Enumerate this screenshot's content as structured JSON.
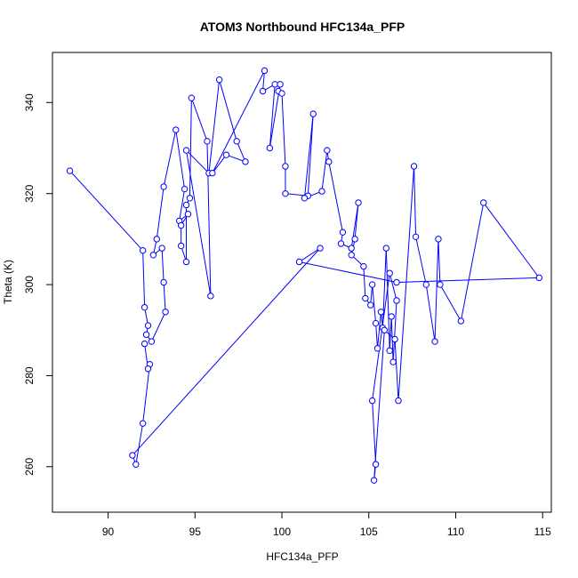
{
  "chart_data": {
    "type": "line",
    "title": "ATOM3 Northbound HFC134a_PFP",
    "xlabel": "HFC134a_PFP",
    "ylabel": "Theta (K)",
    "xlim": [
      86.8,
      115.5
    ],
    "ylim": [
      250.0,
      351.0
    ],
    "xticks": [
      90,
      95,
      100,
      105,
      110,
      115
    ],
    "yticks": [
      260,
      280,
      300,
      320,
      340
    ],
    "grid": false,
    "legend": "none",
    "markers": "open-circle",
    "color": "#0000ff",
    "series": [
      {
        "x": [
          87.8,
          92.0,
          92.1,
          92.3,
          92.2,
          92.5,
          93.3,
          93.2,
          93.1,
          92.6,
          92.8,
          93.2,
          93.9,
          94.4,
          94.1,
          94.6,
          94.2,
          94.2,
          94.5,
          94.5,
          94.7,
          94.8,
          95.7,
          95.9,
          94.5,
          95.8,
          96.4,
          97.4,
          97.9,
          96.8,
          96.0,
          99.0,
          98.9,
          99.6,
          99.3,
          99.9,
          99.8,
          100.0,
          100.2,
          100.2,
          101.5,
          101.8,
          101.3,
          102.3,
          102.6,
          102.7,
          103.5,
          103.4,
          104.0,
          104.4,
          104.2,
          104.0,
          104.7,
          104.8,
          105.1,
          105.2,
          105.4,
          105.5,
          105.7,
          105.8,
          106.0,
          106.2,
          106.3,
          106.4,
          106.6,
          106.2,
          105.2,
          105.4,
          105.3,
          105.9,
          106.5,
          106.7,
          107.6,
          107.7,
          108.3,
          108.8,
          109.0,
          109.1,
          110.3,
          111.6,
          114.8,
          106.6,
          101.0,
          102.2,
          91.4,
          91.6,
          92.0,
          92.4,
          92.3,
          92.1
        ],
        "y": [
          325.0,
          307.5,
          295.0,
          291.0,
          289.0,
          287.5,
          294.0,
          300.5,
          308.0,
          306.5,
          310.0,
          321.5,
          334.0,
          321.0,
          314.0,
          315.5,
          313.0,
          308.5,
          305.0,
          317.5,
          319.0,
          341.0,
          331.5,
          297.5,
          329.5,
          324.5,
          345.0,
          331.5,
          327.0,
          328.5,
          324.5,
          347.0,
          342.5,
          344.0,
          330.0,
          344.0,
          342.5,
          342.0,
          326.0,
          320.0,
          319.5,
          337.5,
          319.0,
          320.5,
          329.5,
          327.0,
          311.5,
          309.0,
          308.0,
          318.0,
          310.0,
          306.5,
          304.0,
          297.0,
          295.5,
          300.0,
          291.5,
          286.0,
          294.0,
          290.5,
          308.0,
          285.5,
          293.0,
          283.0,
          296.5,
          302.5,
          274.5,
          260.5,
          257.0,
          290.0,
          288.0,
          274.5,
          326.0,
          310.5,
          300.0,
          287.5,
          310.0,
          300.0,
          292.0,
          318.0,
          301.5,
          300.5,
          305.0,
          308.0,
          262.5,
          260.5,
          269.5,
          282.5,
          281.5,
          287.0
        ]
      }
    ]
  }
}
